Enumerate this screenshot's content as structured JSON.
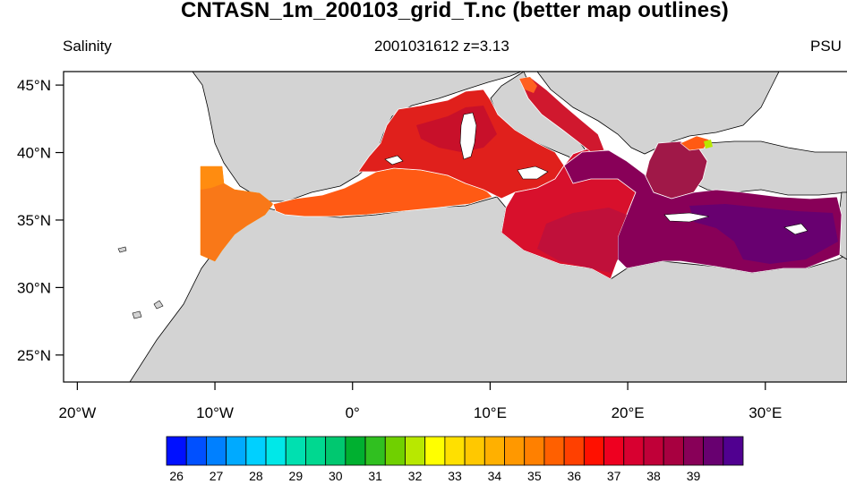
{
  "title": "CNTASN_1m_200103_grid_T.nc (better map outlines)",
  "left_subtitle": "Salinity",
  "center_subtitle": "2001031612  z=3.13",
  "right_subtitle": "PSU",
  "map": {
    "lon_range": [
      -21,
      36
    ],
    "lat_range": [
      23,
      46
    ],
    "lon_ticks": [
      {
        "value": -20,
        "label": "20°W"
      },
      {
        "value": -10,
        "label": "10°W"
      },
      {
        "value": 0,
        "label": "0°"
      },
      {
        "value": 10,
        "label": "10°E"
      },
      {
        "value": 20,
        "label": "20°E"
      },
      {
        "value": 30,
        "label": "30°E"
      }
    ],
    "lat_ticks": [
      {
        "value": 45,
        "label": "45°N"
      },
      {
        "value": 40,
        "label": "40°N"
      },
      {
        "value": 35,
        "label": "35°N"
      },
      {
        "value": 30,
        "label": "30°N"
      },
      {
        "value": 25,
        "label": "25°N"
      }
    ],
    "land_color": "#d3d3d3",
    "ocean_color": "#ffffff"
  },
  "colorbar": {
    "colors": [
      "#0010ff",
      "#0050ff",
      "#0080ff",
      "#00aaff",
      "#00d0ff",
      "#00e8e8",
      "#00e0b0",
      "#00d890",
      "#00c870",
      "#00b030",
      "#30c020",
      "#70d000",
      "#b8e800",
      "#ffff00",
      "#ffe000",
      "#ffc800",
      "#ffb000",
      "#ff9800",
      "#ff8000",
      "#ff6000",
      "#ff4000",
      "#ff1000",
      "#ee0020",
      "#d80030",
      "#c00038",
      "#a80040",
      "#880058",
      "#680070",
      "#500090"
    ],
    "labels": [
      {
        "value": 26,
        "label": "26"
      },
      {
        "value": 27,
        "label": "27"
      },
      {
        "value": 28,
        "label": "28"
      },
      {
        "value": 29,
        "label": "29"
      },
      {
        "value": 30,
        "label": "30"
      },
      {
        "value": 31,
        "label": "31"
      },
      {
        "value": 32,
        "label": "32"
      },
      {
        "value": 33,
        "label": "33"
      },
      {
        "value": 34,
        "label": "34"
      },
      {
        "value": 35,
        "label": "35"
      },
      {
        "value": 36,
        "label": "36"
      },
      {
        "value": 37,
        "label": "37"
      },
      {
        "value": 38,
        "label": "38"
      },
      {
        "value": 39,
        "label": "39"
      }
    ]
  }
}
